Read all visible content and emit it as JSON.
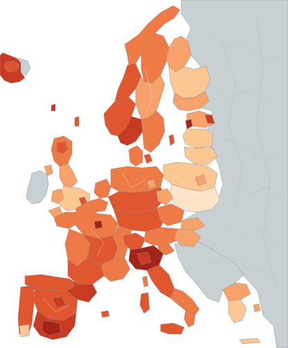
{
  "map": {
    "colors": {
      "sea": "#ffffff",
      "no_data": "#c8d0d4",
      "border": "#8d8d8d",
      "class_1": "#fde4c8",
      "class_2": "#fbc793",
      "class_3": "#f6a26a",
      "class_4": "#ee7a45",
      "class_5": "#e0562f",
      "class_6": "#c83a22",
      "class_7": "#a6231a"
    }
  }
}
